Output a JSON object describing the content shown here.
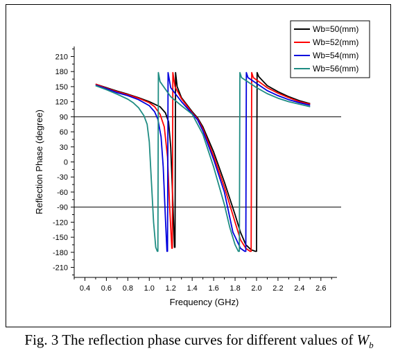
{
  "caption": {
    "text": "Fig. 3 The reflection phase curves for different values of",
    "symbol": "W",
    "subscript": "b"
  },
  "chart_data": {
    "type": "line",
    "title": "",
    "xlabel": "Frequency (GHz)",
    "ylabel": "Reflection Phase (degree)",
    "xlim": [
      0.3,
      2.75
    ],
    "ylim": [
      -230,
      230
    ],
    "xticks": [
      0.4,
      0.6,
      0.8,
      1.0,
      1.2,
      1.4,
      1.6,
      1.8,
      2.0,
      2.2,
      2.4,
      2.6
    ],
    "yticks": [
      210,
      180,
      150,
      120,
      90,
      60,
      30,
      0,
      -30,
      -60,
      -90,
      -120,
      -150,
      -180,
      -210
    ],
    "reference_lines_y": [
      90,
      -90
    ],
    "grid": false,
    "legend": "top-right",
    "series": [
      {
        "name": "Wb=50(mm)",
        "color": "#000000",
        "x": [
          0.5,
          0.6,
          0.7,
          0.8,
          0.9,
          1.0,
          1.1,
          1.15,
          1.18,
          1.2,
          1.22,
          1.235,
          1.24,
          1.245,
          1.26,
          1.3,
          1.4,
          1.45,
          1.5,
          1.6,
          1.7,
          1.8,
          1.85,
          1.9,
          1.95,
          1.99,
          2.0,
          2.005,
          2.02,
          2.1,
          2.2,
          2.3,
          2.4,
          2.5
        ],
        "y": [
          155,
          148,
          141,
          135,
          128,
          120,
          110,
          98,
          80,
          30,
          -80,
          -170,
          -170,
          178,
          150,
          128,
          100,
          88,
          70,
          20,
          -40,
          -105,
          -140,
          -165,
          -175,
          -178,
          -178,
          178,
          170,
          152,
          140,
          130,
          122,
          116
        ]
      },
      {
        "name": "Wb=52(mm)",
        "color": "#ff0000",
        "x": [
          0.5,
          0.6,
          0.7,
          0.8,
          0.9,
          1.0,
          1.05,
          1.1,
          1.14,
          1.17,
          1.19,
          1.21,
          1.215,
          1.22,
          1.24,
          1.3,
          1.4,
          1.45,
          1.5,
          1.6,
          1.7,
          1.8,
          1.85,
          1.9,
          1.94,
          1.95,
          1.955,
          1.97,
          2.1,
          2.2,
          2.3,
          2.4,
          2.5
        ],
        "y": [
          155,
          147,
          140,
          134,
          127,
          118,
          110,
          95,
          70,
          10,
          -90,
          -172,
          -172,
          178,
          150,
          126,
          98,
          86,
          66,
          12,
          -50,
          -120,
          -155,
          -172,
          -178,
          -178,
          178,
          168,
          148,
          137,
          128,
          120,
          115
        ]
      },
      {
        "name": "Wb=54(mm)",
        "color": "#0000dd",
        "x": [
          0.5,
          0.6,
          0.7,
          0.8,
          0.9,
          1.0,
          1.05,
          1.08,
          1.11,
          1.13,
          1.15,
          1.165,
          1.17,
          1.175,
          1.2,
          1.3,
          1.4,
          1.45,
          1.5,
          1.6,
          1.7,
          1.78,
          1.85,
          1.89,
          1.9,
          1.905,
          1.92,
          2.1,
          2.2,
          2.3,
          2.4,
          2.5
        ],
        "y": [
          153,
          146,
          138,
          132,
          124,
          112,
          100,
          85,
          50,
          -10,
          -110,
          -178,
          -178,
          178,
          148,
          120,
          96,
          84,
          62,
          5,
          -60,
          -140,
          -172,
          -178,
          -178,
          178,
          168,
          142,
          132,
          124,
          118,
          113
        ]
      },
      {
        "name": "Wb=56(mm)",
        "color": "#1e8c82",
        "x": [
          0.5,
          0.6,
          0.7,
          0.8,
          0.85,
          0.9,
          0.95,
          0.98,
          1.0,
          1.02,
          1.04,
          1.06,
          1.075,
          1.08,
          1.085,
          1.1,
          1.2,
          1.3,
          1.4,
          1.5,
          1.6,
          1.7,
          1.75,
          1.8,
          1.83,
          1.84,
          1.845,
          1.86,
          2.0,
          2.1,
          2.2,
          2.3,
          2.4,
          2.5
        ],
        "y": [
          152,
          144,
          135,
          125,
          118,
          108,
          92,
          75,
          40,
          -40,
          -120,
          -170,
          -178,
          -178,
          178,
          160,
          130,
          112,
          95,
          55,
          -10,
          -85,
          -130,
          -165,
          -178,
          -178,
          178,
          168,
          148,
          136,
          127,
          120,
          115,
          110
        ]
      }
    ]
  }
}
